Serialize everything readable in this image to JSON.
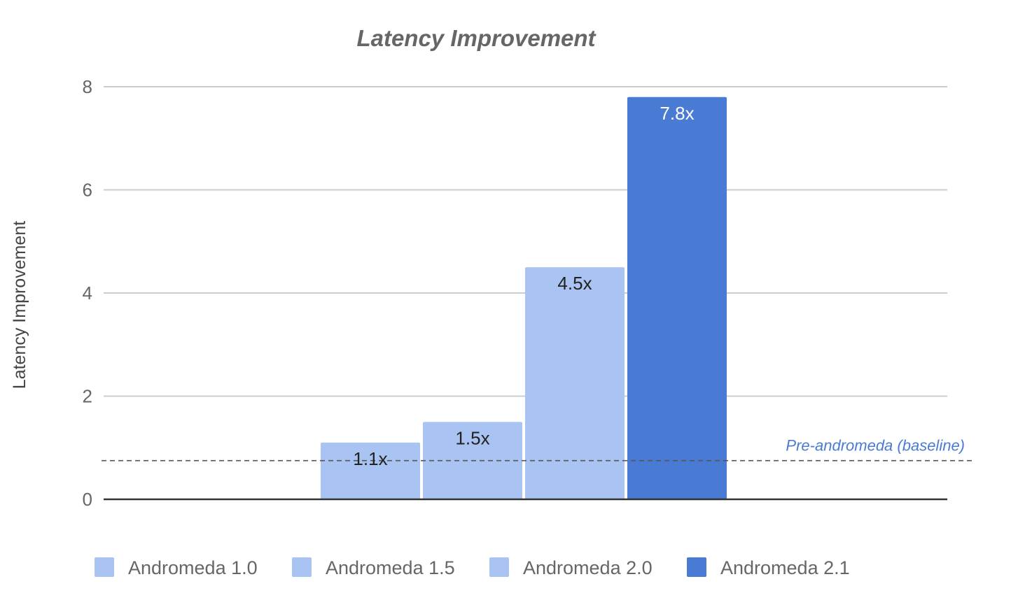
{
  "chart_data": {
    "type": "bar",
    "title": "Latency Improvement",
    "ylabel": "Latency Improvement",
    "xlabel": "",
    "ylim": [
      0,
      8
    ],
    "yticks": [
      0,
      2,
      4,
      6,
      8
    ],
    "grid": true,
    "legend_position": "bottom",
    "series": [
      {
        "name": "Andromeda 1.0",
        "value": 1.1,
        "label": "1.1x",
        "color": "#a9c4f2"
      },
      {
        "name": "Andromeda 1.5",
        "value": 1.5,
        "label": "1.5x",
        "color": "#a9c4f2"
      },
      {
        "name": "Andromeda 2.0",
        "value": 4.5,
        "label": "4.5x",
        "color": "#a9c4f2"
      },
      {
        "name": "Andromeda 2.1",
        "value": 7.8,
        "label": "7.8x",
        "color": "#4a7bd4"
      }
    ],
    "baseline": {
      "label": "Pre-andromeda (baseline)",
      "value": 0.75,
      "label_color": "#4a7bd4"
    },
    "colors": {
      "grid": "#cccccc",
      "axis": "#333333",
      "baseline": "#555555"
    }
  }
}
